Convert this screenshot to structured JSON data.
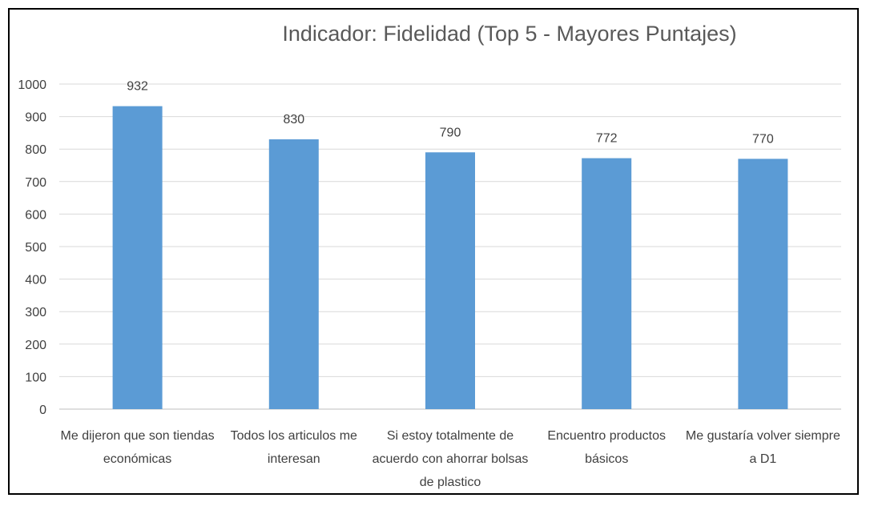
{
  "chart_data": {
    "type": "bar",
    "title": "Indicador: Fidelidad (Top 5 - Mayores Puntajes)",
    "xlabel": "",
    "ylabel": "",
    "categories": [
      [
        "Me dijeron que son tiendas",
        "económicas"
      ],
      [
        "Todos los articulos me",
        "interesan"
      ],
      [
        "Si estoy totalmente de",
        "acuerdo con ahorrar bolsas",
        "de plastico"
      ],
      [
        "Encuentro productos",
        "básicos"
      ],
      [
        "Me gustaría volver siempre",
        "a D1"
      ]
    ],
    "values": [
      932,
      830,
      790,
      772,
      770
    ],
    "data_labels": [
      "932",
      "830",
      "790",
      "772",
      "770"
    ],
    "ylim": [
      0,
      1000
    ],
    "yticks": [
      0,
      100,
      200,
      300,
      400,
      500,
      600,
      700,
      800,
      900,
      1000
    ],
    "grid": true,
    "legend": "none",
    "colors": {
      "bar": "#5b9bd5"
    }
  }
}
